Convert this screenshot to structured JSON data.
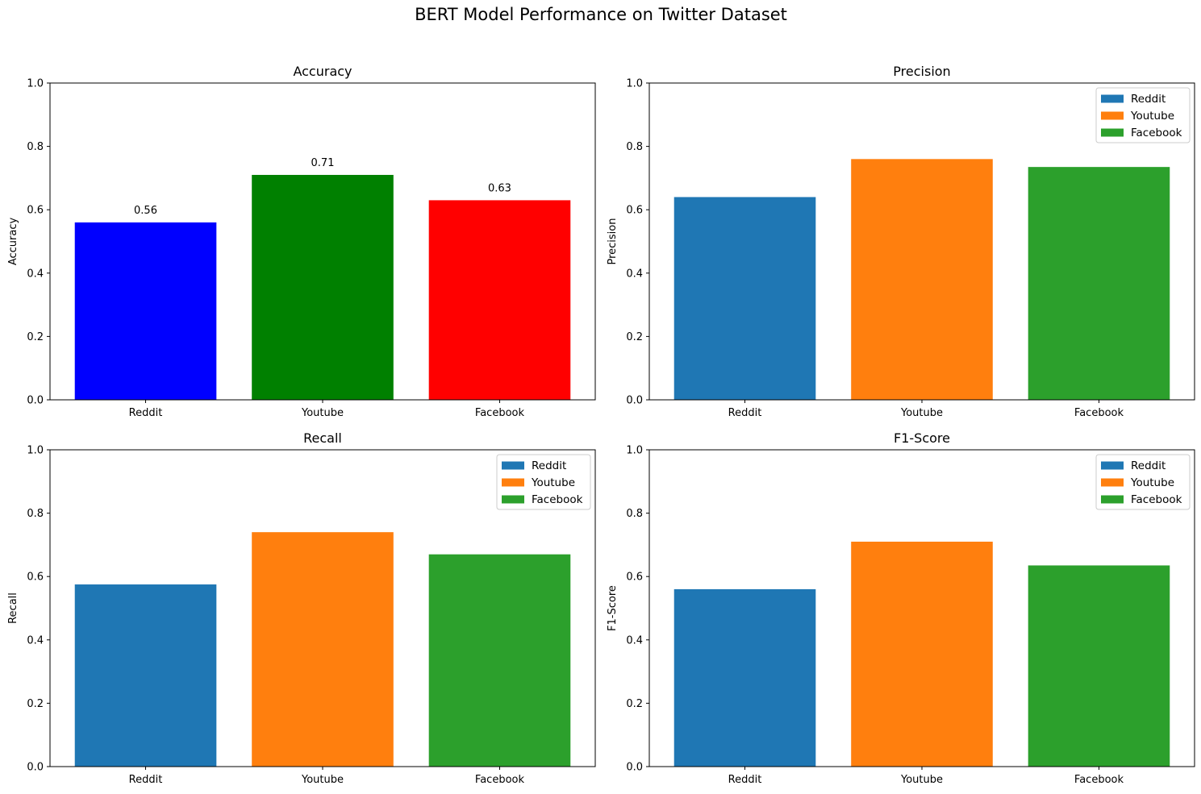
{
  "figure": {
    "title": "BERT Model Performance on Twitter Dataset"
  },
  "chart_data": [
    {
      "type": "bar",
      "title": "Accuracy",
      "xlabel": "",
      "ylabel": "Accuracy",
      "categories": [
        "Reddit",
        "Youtube",
        "Facebook"
      ],
      "values": [
        0.56,
        0.71,
        0.63
      ],
      "colors": [
        "#0000ff",
        "#008000",
        "#ff0000"
      ],
      "data_labels": [
        "0.56",
        "0.71",
        "0.63"
      ],
      "ylim": [
        0,
        1
      ],
      "yticks": [
        "0.0",
        "0.2",
        "0.4",
        "0.6",
        "0.8",
        "1.0"
      ],
      "grid": false,
      "legend": null
    },
    {
      "type": "bar",
      "title": "Precision",
      "xlabel": "",
      "ylabel": "Precision",
      "categories": [
        "Reddit",
        "Youtube",
        "Facebook"
      ],
      "values": [
        0.64,
        0.76,
        0.735
      ],
      "colors": [
        "#1f77b4",
        "#ff7f0e",
        "#2ca02c"
      ],
      "data_labels": [],
      "ylim": [
        0,
        1
      ],
      "yticks": [
        "0.0",
        "0.2",
        "0.4",
        "0.6",
        "0.8",
        "1.0"
      ],
      "grid": false,
      "legend": {
        "placement": "upper right",
        "entries": [
          "Reddit",
          "Youtube",
          "Facebook"
        ]
      }
    },
    {
      "type": "bar",
      "title": "Recall",
      "xlabel": "",
      "ylabel": "Recall",
      "categories": [
        "Reddit",
        "Youtube",
        "Facebook"
      ],
      "values": [
        0.575,
        0.74,
        0.67
      ],
      "colors": [
        "#1f77b4",
        "#ff7f0e",
        "#2ca02c"
      ],
      "data_labels": [],
      "ylim": [
        0,
        1
      ],
      "yticks": [
        "0.0",
        "0.2",
        "0.4",
        "0.6",
        "0.8",
        "1.0"
      ],
      "grid": false,
      "legend": {
        "placement": "upper right",
        "entries": [
          "Reddit",
          "Youtube",
          "Facebook"
        ]
      }
    },
    {
      "type": "bar",
      "title": "F1-Score",
      "xlabel": "",
      "ylabel": "F1-Score",
      "categories": [
        "Reddit",
        "Youtube",
        "Facebook"
      ],
      "values": [
        0.56,
        0.71,
        0.635
      ],
      "colors": [
        "#1f77b4",
        "#ff7f0e",
        "#2ca02c"
      ],
      "data_labels": [],
      "ylim": [
        0,
        1
      ],
      "yticks": [
        "0.0",
        "0.2",
        "0.4",
        "0.6",
        "0.8",
        "1.0"
      ],
      "grid": false,
      "legend": {
        "placement": "upper right",
        "entries": [
          "Reddit",
          "Youtube",
          "Facebook"
        ]
      }
    }
  ]
}
